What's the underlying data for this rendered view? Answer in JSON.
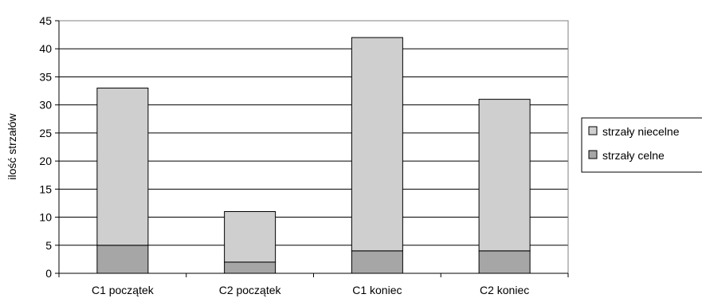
{
  "chart_data": {
    "type": "bar",
    "stacked": true,
    "categories": [
      "C1 początek",
      "C2 początek",
      "C1 koniec",
      "C2 koniec"
    ],
    "series": [
      {
        "name": "strzały celne",
        "values": [
          5,
          2,
          4,
          4
        ],
        "color": "#a6a6a6"
      },
      {
        "name": "strzały niecelne",
        "values": [
          28,
          9,
          38,
          27
        ],
        "color": "#cfcfcf"
      }
    ],
    "title": "",
    "xlabel": "",
    "ylabel": "ilość strzałów",
    "ylim": [
      0,
      45
    ],
    "yticks": [
      "0",
      "5",
      "10",
      "15",
      "20",
      "25",
      "30",
      "35",
      "40",
      "45"
    ],
    "grid": true,
    "legend_position": "right",
    "legend_order": [
      "strzały niecelne",
      "strzały celne"
    ]
  }
}
